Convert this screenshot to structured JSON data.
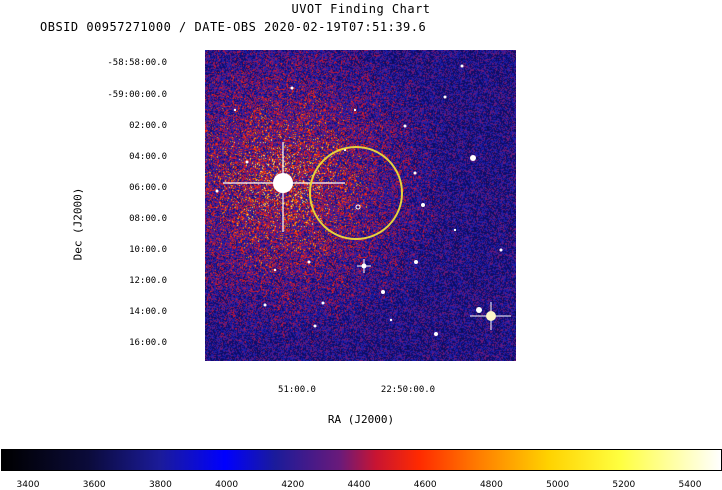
{
  "chart_data": {
    "type": "heatmap",
    "title": "UVOT Finding Chart",
    "subtitle": "OBSID 00957271000 / DATE-OBS 2020-02-19T07:51:39.6",
    "xlabel": "RA (J2000)",
    "ylabel": "Dec (J2000)",
    "dec_ticks": [
      "-58:58:00.0",
      "-59:00:00.0",
      "02:00.0",
      "04:00.0",
      "06:00.0",
      "08:00.0",
      "10:00.0",
      "12:00.0",
      "14:00.0",
      "16:00.0"
    ],
    "ra_ticks": [
      "51:00.0",
      "22:50:00.0"
    ],
    "colorbar": {
      "ticks": [
        3400,
        3600,
        3800,
        4000,
        4200,
        4400,
        4600,
        4800,
        5000,
        5200,
        5400
      ],
      "colors": [
        "#000000",
        "#1b1b9a",
        "#0000ff",
        "#c81432",
        "#ff2a00",
        "#ffd200",
        "#ffffff"
      ]
    },
    "marker": {
      "shape": "circle",
      "color": "#e6d23c"
    }
  }
}
